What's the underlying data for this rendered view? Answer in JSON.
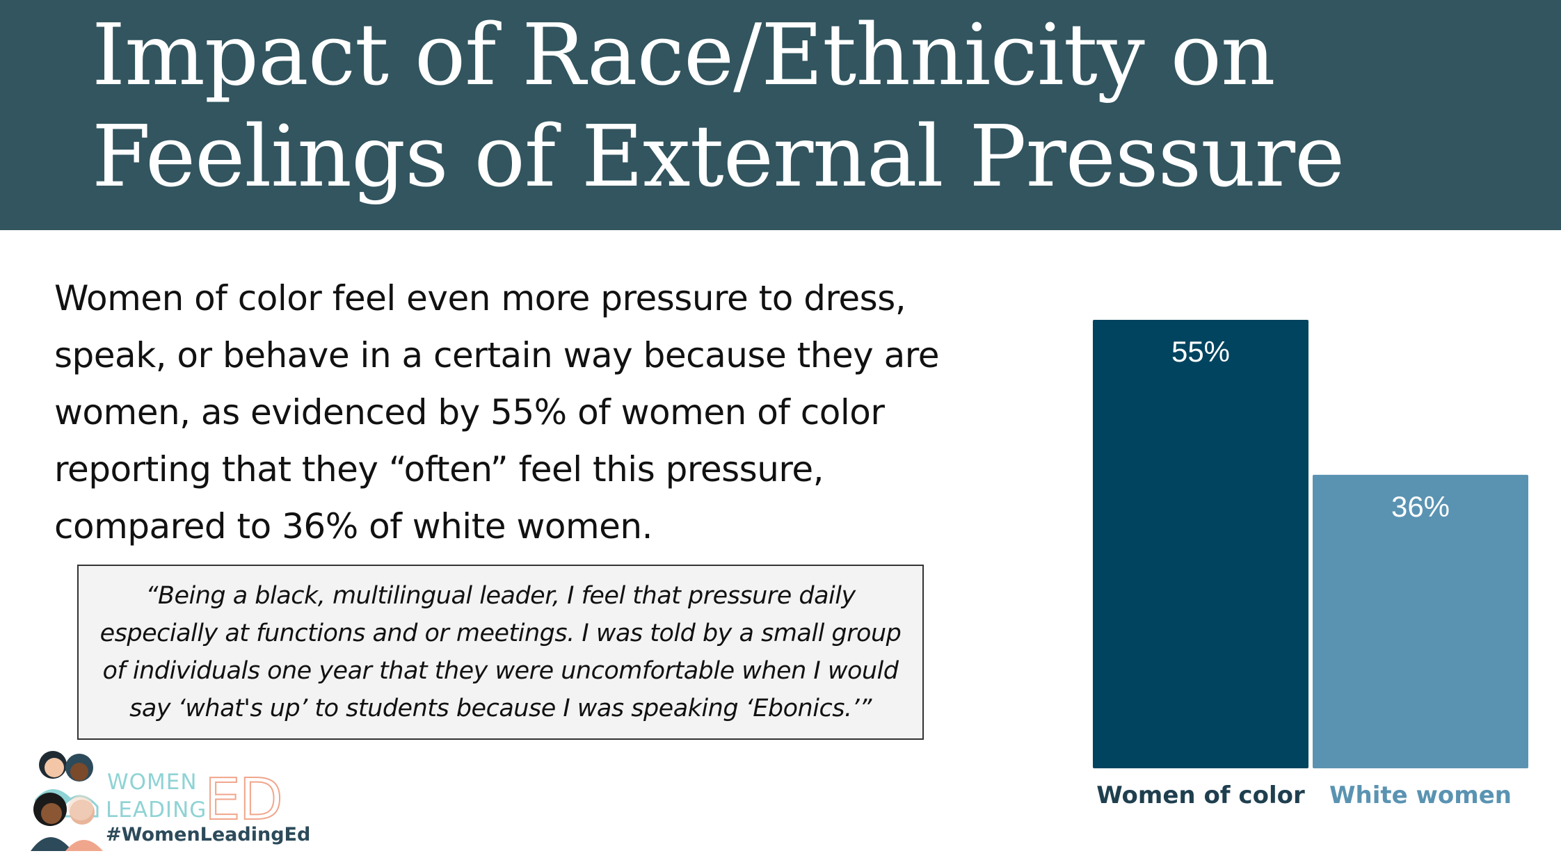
{
  "header": {
    "title_line1": "Impact of Race/Ethnicity on",
    "title_line2": "Feelings of External Pressure"
  },
  "body_text": "Women of color feel even more pressure to dress, speak, or behave in a certain way because they are women, as evidenced by 55% of women of color reporting that they “often” feel this pressure, compared to 36% of white women.",
  "quote": "“Being a black, multilingual leader, I feel that pressure daily especially at functions and or meetings. I was told by a small group of individuals one year that they were uncomfortable when I would say ‘what's up’ to students because I was speaking ‘Ebonics.’”",
  "chart_data": {
    "type": "bar",
    "categories": [
      "Women of color",
      "White women"
    ],
    "values": [
      55,
      36
    ],
    "value_labels": [
      "55%",
      "36%"
    ],
    "colors": [
      "#00445f",
      "#5a93b2"
    ],
    "label_colors": [
      "#1f3f4f",
      "#5a93b2"
    ],
    "ylim": [
      0,
      55
    ],
    "grid": false,
    "legend": "none",
    "title": "",
    "xlabel": "",
    "ylabel": ""
  },
  "logo": {
    "word1": "WOMEN",
    "word2": "LEADING",
    "word3": "ED",
    "hashtag": "#WomenLeadingEd"
  }
}
